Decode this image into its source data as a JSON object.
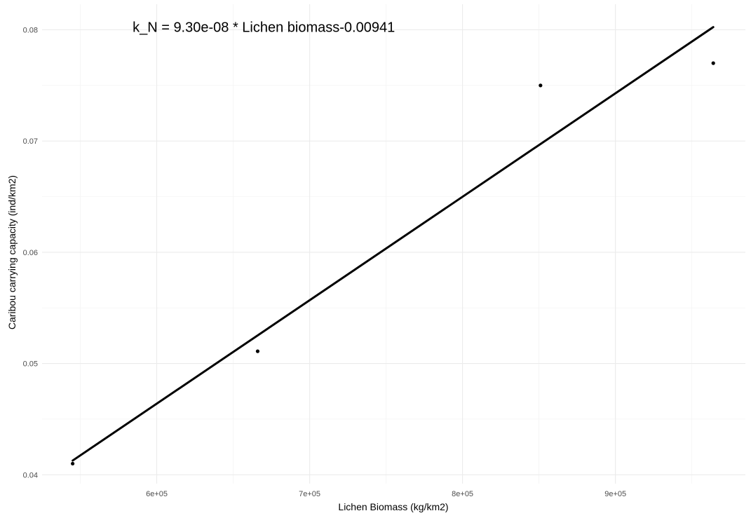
{
  "chart_data": {
    "type": "scatter",
    "title": "",
    "xlabel": "Lichen Biomass (kg/km2)",
    "ylabel": "Caribou carrying capacity (ind/km2)",
    "xlim": [
      525000,
      985000
    ],
    "ylim": [
      0.0392,
      0.0823
    ],
    "x_ticks": [
      600000,
      700000,
      800000,
      900000
    ],
    "x_tick_labels": [
      "6e+05",
      "7e+05",
      "8e+05",
      "9e+05"
    ],
    "y_ticks": [
      0.04,
      0.05,
      0.06,
      0.07,
      0.08
    ],
    "y_tick_labels": [
      "0.04",
      "0.05",
      "0.06",
      "0.07",
      "0.08"
    ],
    "points": [
      {
        "x": 545000,
        "y": 0.041
      },
      {
        "x": 666000,
        "y": 0.0511
      },
      {
        "x": 851000,
        "y": 0.075
      },
      {
        "x": 964000,
        "y": 0.077
      }
    ],
    "fit_line": {
      "slope": 9.3e-08,
      "intercept": -0.00941,
      "x_range": [
        545000,
        964000
      ]
    },
    "annotation": "k_N = 9.30e-08 * Lichen biomass-0.00941",
    "annotation_pos": {
      "x": 670000,
      "y": 0.0798
    },
    "grid": true,
    "legend": "none",
    "colors": {
      "line": "#000000",
      "points": "#000000",
      "grid": "#ebebeb"
    }
  }
}
